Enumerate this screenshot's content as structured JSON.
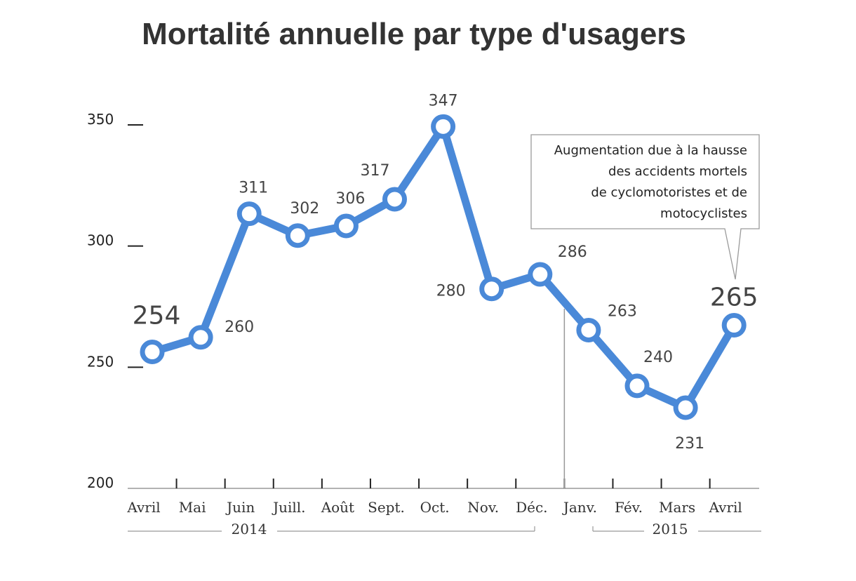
{
  "chart_data": {
    "type": "line",
    "title": "Mortalité annuelle par type d'usagers",
    "categories": [
      "Avril",
      "Mai",
      "Juin",
      "Juill.",
      "Août",
      "Sept.",
      "Oct.",
      "Nov.",
      "Déc.",
      "Janv.",
      "Fév.",
      "Mars",
      "Avril"
    ],
    "values": [
      254,
      260,
      311,
      302,
      306,
      317,
      347,
      280,
      286,
      263,
      240,
      231,
      265
    ],
    "value_labels": [
      "254",
      "260",
      "311",
      "302",
      "306",
      "317",
      "347",
      "280",
      "286",
      "263",
      "240",
      "231",
      "265"
    ],
    "years": [
      {
        "label": "2014"
      },
      {
        "label": "2015"
      }
    ],
    "y_ticks": [
      "350",
      "300",
      "250",
      "200"
    ],
    "ylim": [
      200,
      350
    ],
    "xlabel": "",
    "ylabel": "",
    "grid": false,
    "line_color": "#4a89d8",
    "annotation": {
      "lines": [
        "Augmentation due à la hausse",
        "des accidents mortels",
        "de cyclomotoristes et de",
        "motocyclistes"
      ]
    }
  }
}
